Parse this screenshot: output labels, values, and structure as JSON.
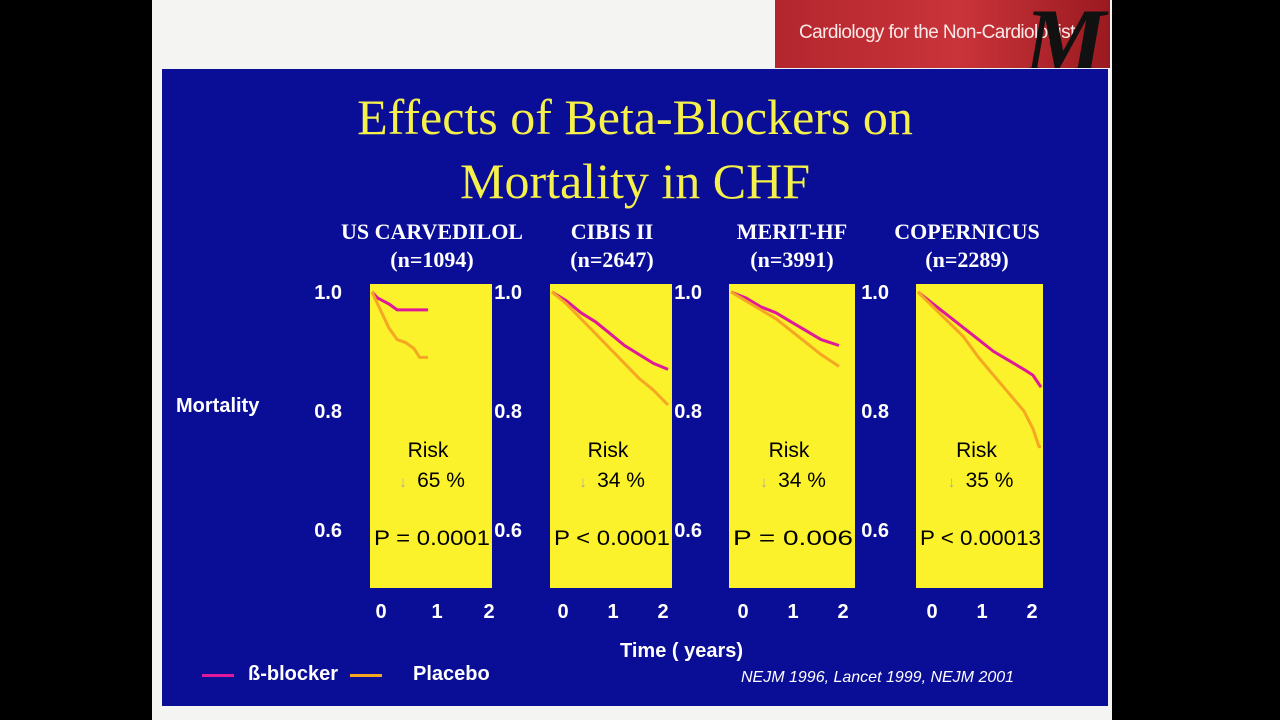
{
  "header": {
    "banner_text": "Cardiology for the Non-Cardiologist",
    "banner_logo": "M"
  },
  "slide": {
    "title_line1": "Effects of Beta-Blockers on",
    "title_line2": "Mortality in CHF",
    "y_label": "Mortality",
    "x_label": "Time ( years)",
    "citation": "NEJM 1996, Lancet 1999, NEJM 2001",
    "legend": {
      "beta_label": "ß-blocker",
      "placebo_label": "Placebo"
    }
  },
  "colors": {
    "slide_bg": "#0a0d96",
    "title": "#f5f04a",
    "panel_bg": "#fbf22b",
    "beta_blocker": "#e0189a",
    "placebo": "#f5a623"
  },
  "chart_data": [
    {
      "type": "line",
      "study": "US CARVEDILOL",
      "n_label": "(n=1094)",
      "ylim": [
        0.5,
        1.0
      ],
      "xlim": [
        0,
        2
      ],
      "yticks": [
        "1.0",
        "0.8",
        "0.6"
      ],
      "xticks": [
        "0",
        "1",
        "2"
      ],
      "risk_label": "Risk",
      "risk_arrow": "↓",
      "risk_value": "65 %",
      "p_value": "P = 0.0001",
      "series": [
        {
          "name": "ß-blocker",
          "x": [
            0,
            0.1,
            0.2,
            0.3,
            0.45,
            0.6,
            0.8,
            1.0
          ],
          "y": [
            1.0,
            0.99,
            0.985,
            0.98,
            0.97,
            0.97,
            0.97,
            0.97
          ]
        },
        {
          "name": "Placebo",
          "x": [
            0,
            0.1,
            0.2,
            0.3,
            0.45,
            0.6,
            0.75,
            0.85,
            1.0
          ],
          "y": [
            1.0,
            0.98,
            0.96,
            0.94,
            0.92,
            0.915,
            0.905,
            0.89,
            0.89
          ]
        }
      ]
    },
    {
      "type": "line",
      "study": "CIBIS II",
      "n_label": "(n=2647)",
      "ylim": [
        0.5,
        1.0
      ],
      "xlim": [
        0,
        2
      ],
      "yticks": [
        "1.0",
        "0.8",
        "0.6"
      ],
      "xticks": [
        "0",
        "1",
        "2"
      ],
      "risk_label": "Risk",
      "risk_arrow": "↓",
      "risk_value": "34 %",
      "p_value": "P < 0.0001",
      "series": [
        {
          "name": "ß-blocker",
          "x": [
            0,
            0.25,
            0.5,
            0.75,
            1.0,
            1.25,
            1.5,
            1.75,
            2.0
          ],
          "y": [
            1.0,
            0.985,
            0.965,
            0.95,
            0.93,
            0.91,
            0.895,
            0.88,
            0.87
          ]
        },
        {
          "name": "Placebo",
          "x": [
            0,
            0.25,
            0.5,
            0.75,
            1.0,
            1.25,
            1.5,
            1.75,
            2.0
          ],
          "y": [
            1.0,
            0.98,
            0.955,
            0.93,
            0.905,
            0.88,
            0.855,
            0.835,
            0.81
          ]
        }
      ]
    },
    {
      "type": "line",
      "study": "MERIT-HF",
      "n_label": "(n=3991)",
      "ylim": [
        0.5,
        1.0
      ],
      "xlim": [
        0,
        2
      ],
      "yticks": [
        "1.0",
        "0.8",
        "0.6"
      ],
      "xticks": [
        "0",
        "1",
        "2"
      ],
      "risk_label": "Risk",
      "risk_arrow": "↓",
      "risk_value": "34 %",
      "p_value": "P = 0.006",
      "series": [
        {
          "name": "ß-blocker",
          "x": [
            0,
            0.25,
            0.5,
            0.75,
            1.0,
            1.25,
            1.5,
            1.8
          ],
          "y": [
            1.0,
            0.99,
            0.975,
            0.965,
            0.95,
            0.935,
            0.92,
            0.91
          ]
        },
        {
          "name": "Placebo",
          "x": [
            0,
            0.25,
            0.5,
            0.75,
            1.0,
            1.25,
            1.5,
            1.8
          ],
          "y": [
            1.0,
            0.985,
            0.97,
            0.955,
            0.935,
            0.915,
            0.895,
            0.875
          ]
        }
      ]
    },
    {
      "type": "line",
      "study": "COPERNICUS",
      "n_label": "(n=2289)",
      "ylim": [
        0.5,
        1.0
      ],
      "xlim": [
        0,
        2
      ],
      "yticks": [
        "1.0",
        "0.8",
        "0.6"
      ],
      "xticks": [
        "0",
        "1",
        "2"
      ],
      "risk_label": "Risk",
      "risk_arrow": "↓",
      "risk_value": "35 %",
      "p_value": "P < 0.00013",
      "series": [
        {
          "name": "ß-blocker",
          "x": [
            0,
            0.25,
            0.5,
            0.75,
            1.0,
            1.25,
            1.5,
            1.75,
            1.9,
            2.1
          ],
          "y": [
            1.0,
            0.98,
            0.96,
            0.94,
            0.92,
            0.9,
            0.885,
            0.87,
            0.86,
            0.84
          ]
        },
        {
          "name": "Placebo",
          "x": [
            0,
            0.25,
            0.5,
            0.75,
            1.0,
            1.25,
            1.5,
            1.75,
            1.9,
            2.0,
            2.1
          ],
          "y": [
            1.0,
            0.975,
            0.95,
            0.925,
            0.89,
            0.86,
            0.83,
            0.8,
            0.77,
            0.74,
            0.74
          ]
        }
      ]
    }
  ]
}
